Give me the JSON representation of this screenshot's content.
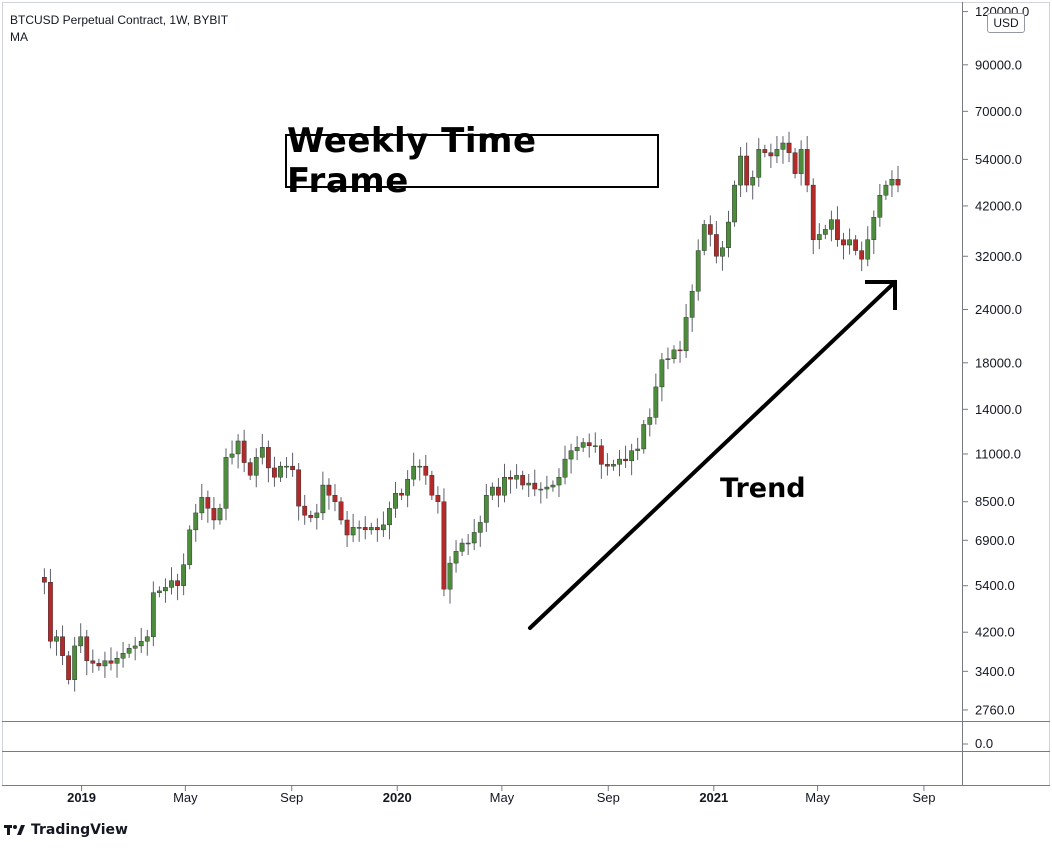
{
  "header": {
    "title": "BTCUSD Perpetual Contract, 1W, BYBIT",
    "indicator": "MA"
  },
  "annotations": {
    "box_label": "Weekly Time Frame",
    "trend_label": "Trend"
  },
  "currency": "USD",
  "brand": {
    "name": "TradingView",
    "logo_icon": "tradingview-logo-icon"
  },
  "colors": {
    "up": "#4c8c3c",
    "down": "#b22b2b",
    "axis": "#787b86",
    "text": "#131722",
    "arrow": "#000000"
  },
  "chart_data": {
    "type": "candlestick",
    "scale": "log",
    "ylim": [
      2600,
      125000
    ],
    "y_ticks": [
      {
        "value": 120000,
        "label": "120000.0"
      },
      {
        "value": 90000,
        "label": "90000.0"
      },
      {
        "value": 70000,
        "label": "70000.0"
      },
      {
        "value": 54000,
        "label": "54000.0"
      },
      {
        "value": 42000,
        "label": "42000.0"
      },
      {
        "value": 32000,
        "label": "32000.0"
      },
      {
        "value": 24000,
        "label": "24000.0"
      },
      {
        "value": 18000,
        "label": "18000.0"
      },
      {
        "value": 14000,
        "label": "14000.0"
      },
      {
        "value": 11000,
        "label": "11000.0"
      },
      {
        "value": 8500,
        "label": "8500.0"
      },
      {
        "value": 6900,
        "label": "6900.0"
      },
      {
        "value": 5400,
        "label": "5400.0"
      },
      {
        "value": 4200,
        "label": "4200.0"
      },
      {
        "value": 3400,
        "label": "3400.0"
      },
      {
        "value": 2760,
        "label": "2760.0"
      }
    ],
    "x_start": "2018-11-12",
    "x_range": [
      "2018-10-01",
      "2021-10-15"
    ],
    "x_ticks": [
      {
        "date": "2019-01-01",
        "label": "2019",
        "bold": true
      },
      {
        "date": "2019-05-01",
        "label": "May",
        "bold": false
      },
      {
        "date": "2019-09-01",
        "label": "Sep",
        "bold": false
      },
      {
        "date": "2020-01-01",
        "label": "2020",
        "bold": true
      },
      {
        "date": "2020-05-01",
        "label": "May",
        "bold": false
      },
      {
        "date": "2020-09-01",
        "label": "Sep",
        "bold": false
      },
      {
        "date": "2021-01-01",
        "label": "2021",
        "bold": true
      },
      {
        "date": "2021-05-01",
        "label": "May",
        "bold": false
      },
      {
        "date": "2021-09-01",
        "label": "Sep",
        "bold": false
      }
    ],
    "sub_pane": {
      "label": "0.0"
    },
    "closes": [
      5650,
      5500,
      4000,
      4100,
      3700,
      3250,
      3900,
      4100,
      3600,
      3550,
      3500,
      3600,
      3550,
      3650,
      3750,
      3850,
      3900,
      4000,
      4100,
      5200,
      5250,
      5350,
      5550,
      5400,
      6050,
      7300,
      8000,
      8700,
      8200,
      7700,
      8200,
      10800,
      11000,
      11800,
      10500,
      9800,
      10800,
      11400,
      10200,
      9700,
      10300,
      10300,
      10100,
      8300,
      7900,
      7800,
      8000,
      9300,
      8800,
      8500,
      7700,
      7100,
      7400,
      7400,
      7300,
      7400,
      7300,
      7500,
      8200,
      8900,
      8800,
      9600,
      10300,
      10300,
      9800,
      8800,
      8500,
      5300,
      6100,
      6500,
      6800,
      6800,
      7200,
      7600,
      8800,
      9200,
      8800,
      9700,
      9600,
      9800,
      9300,
      9400,
      9100,
      9100,
      9200,
      9300,
      9700,
      10700,
      11200,
      11400,
      11700,
      11500,
      11500,
      10400,
      10300,
      10400,
      10700,
      10600,
      11200,
      11300,
      12900,
      13400,
      15800,
      18300,
      18400,
      19300,
      19200,
      23000,
      26500,
      33000,
      38000,
      36000,
      32000,
      33500,
      38500,
      47000,
      55000,
      47000,
      49000,
      57000,
      56000,
      55000,
      57000,
      59000,
      56000,
      50000,
      57000,
      47000,
      35000,
      36000,
      37000,
      39000,
      35000,
      34000,
      35000,
      33000,
      31500,
      35000,
      39500,
      44500,
      47000,
      48500,
      47000
    ],
    "wick_scale": 0.025
  }
}
